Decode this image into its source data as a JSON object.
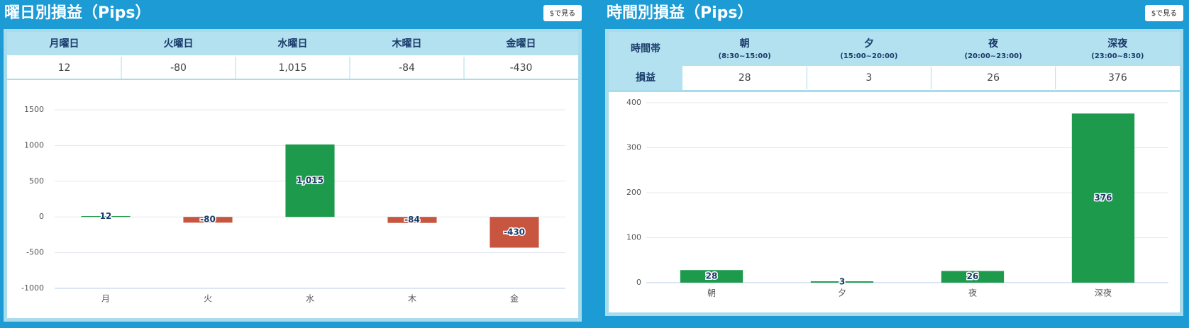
{
  "chart_data": [
    {
      "type": "bar",
      "title": "曜日別損益（Pips）",
      "categories": [
        "月",
        "火",
        "水",
        "木",
        "金"
      ],
      "values": [
        12,
        -80,
        1015,
        -84,
        -430
      ],
      "value_labels": [
        "12",
        "-80",
        "1,015",
        "-84",
        "-430"
      ],
      "positive_color": "#1e9a4d",
      "negative_color": "#c8553f",
      "ylim": [
        -1000,
        1500
      ],
      "yticks": [
        -1000,
        -500,
        0,
        500,
        1000,
        1500
      ],
      "grid": true
    },
    {
      "type": "bar",
      "title": "時間別損益（Pips）",
      "categories": [
        "朝",
        "夕",
        "夜",
        "深夜"
      ],
      "values": [
        28,
        3,
        26,
        376
      ],
      "positive_color": "#1e9a4d",
      "negative_color": "#c8553f",
      "ylim": [
        0,
        400
      ],
      "yticks": [
        0,
        100,
        200,
        300,
        400
      ],
      "grid": true
    }
  ],
  "panels": [
    {
      "button": "$で見る",
      "table_headers": [
        "月曜日",
        "火曜日",
        "水曜日",
        "木曜日",
        "金曜日"
      ]
    },
    {
      "button": "$で見る",
      "row_headers": [
        "時間帯",
        "損益"
      ],
      "table_headers": [
        {
          "label": "朝",
          "sub": "(8:30~15:00)"
        },
        {
          "label": "夕",
          "sub": "(15:00~20:00)"
        },
        {
          "label": "夜",
          "sub": "(20:00~23:00)"
        },
        {
          "label": "深夜",
          "sub": "(23:00~8:30)"
        }
      ]
    }
  ]
}
